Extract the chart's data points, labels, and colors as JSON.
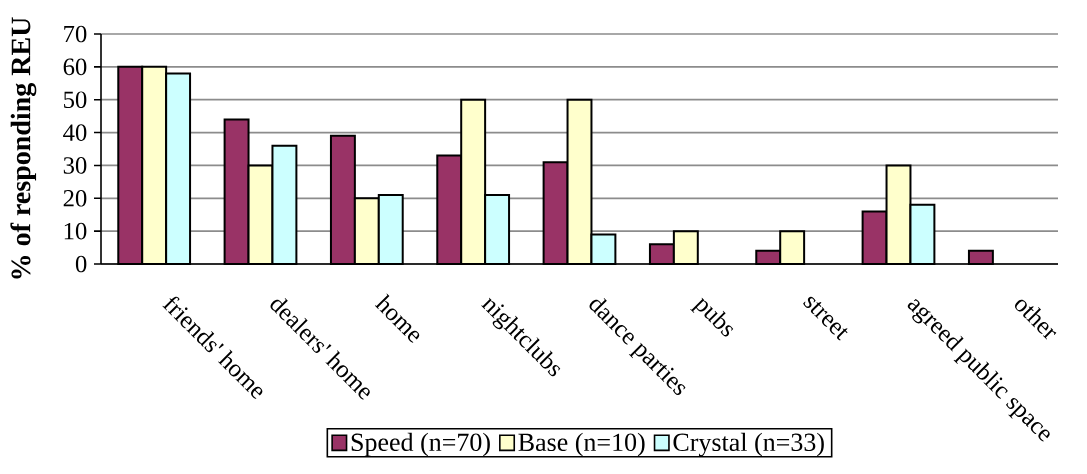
{
  "chart_data": {
    "type": "bar",
    "ylabel": "% of responding REU",
    "categories": [
      "friends' home",
      "dealers' home",
      "home",
      "nightclubs",
      "dance parties",
      "pubs",
      "street",
      "agreed public space",
      "other"
    ],
    "series": [
      {
        "name": "Speed (n=70)",
        "color": "#993366",
        "values": [
          60,
          44,
          39,
          33,
          31,
          6,
          4,
          16,
          4
        ]
      },
      {
        "name": "Base (n=10)",
        "color": "#ffffcc",
        "values": [
          60,
          30,
          20,
          50,
          50,
          10,
          10,
          30,
          null
        ]
      },
      {
        "name": "Crystal (n=33)",
        "color": "#ccffff",
        "values": [
          58,
          36,
          21,
          21,
          9,
          null,
          null,
          18,
          null
        ]
      }
    ],
    "ylim": [
      0,
      70
    ],
    "yticks": [
      0,
      10,
      20,
      30,
      40,
      50,
      60,
      70
    ],
    "grid": "y",
    "legend": "bottom"
  }
}
